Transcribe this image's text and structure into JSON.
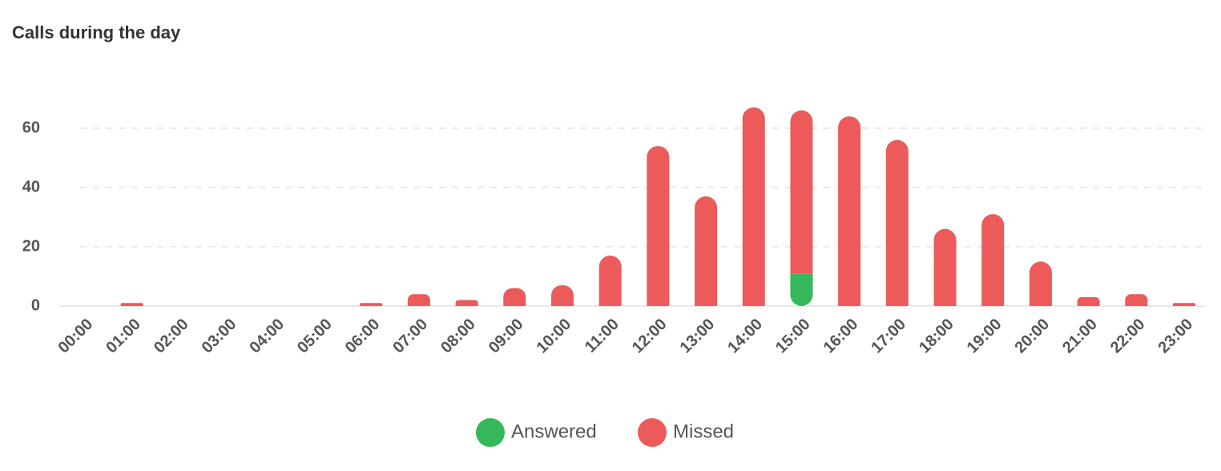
{
  "chart_data": {
    "type": "stacked_bar",
    "title": "Calls during the day",
    "categories": [
      "00:00",
      "01:00",
      "02:00",
      "03:00",
      "04:00",
      "05:00",
      "06:00",
      "07:00",
      "08:00",
      "09:00",
      "10:00",
      "11:00",
      "12:00",
      "13:00",
      "14:00",
      "15:00",
      "16:00",
      "17:00",
      "18:00",
      "19:00",
      "20:00",
      "21:00",
      "22:00",
      "23:00"
    ],
    "series": [
      {
        "name": "Answered",
        "color": "#35b85a",
        "values": [
          0,
          0,
          0,
          0,
          0,
          0,
          0,
          0,
          0,
          0,
          0,
          0,
          0,
          0,
          0,
          11,
          0,
          0,
          0,
          0,
          0,
          0,
          0,
          0
        ]
      },
      {
        "name": "Missed",
        "color": "#ec5a5a",
        "values": [
          0,
          1,
          0,
          0,
          0,
          0,
          1,
          4,
          2,
          6,
          7,
          17,
          54,
          37,
          67,
          55,
          64,
          56,
          26,
          31,
          15,
          3,
          4,
          1
        ]
      }
    ],
    "ylim": [
      0,
      70
    ],
    "yticks": [
      0,
      20,
      40,
      60
    ],
    "grid": true,
    "legend": "bottom"
  }
}
